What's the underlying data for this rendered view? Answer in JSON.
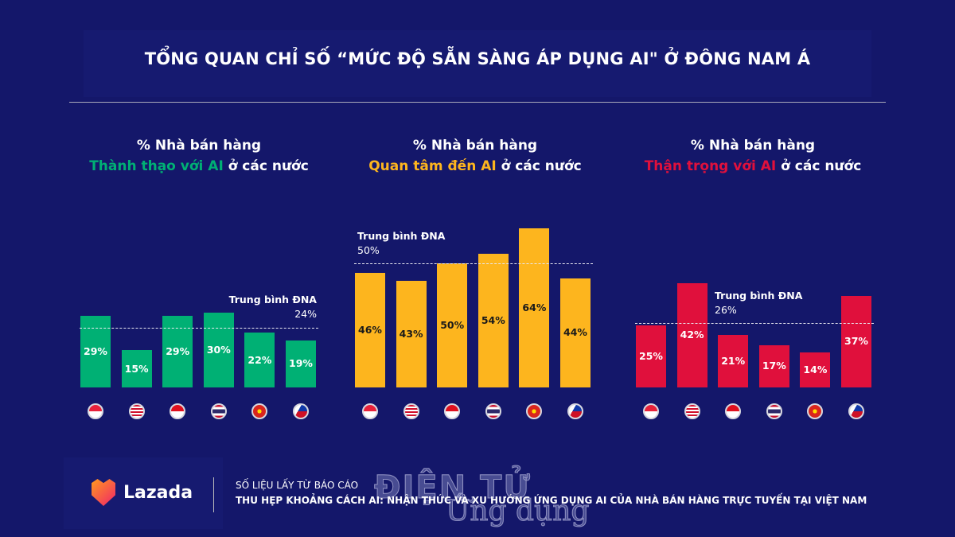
{
  "title": "TỔNG QUAN CHỈ SỐ “MỨC ĐỘ SẴN SÀNG ÁP DỤNG AI\" Ở ĐÔNG NAM Á",
  "colors": {
    "background": "#14176a",
    "green": "#00b074",
    "orange": "#fdb51e",
    "red": "#e0103c"
  },
  "chart_data": [
    {
      "type": "bar",
      "title_line1": "% Nhà bán hàng",
      "title_highlight": "Thành thạo với AI",
      "title_rest": " ở các nước",
      "color": "#00b074",
      "label_color": "#ffffff",
      "categories": [
        "Singapore",
        "Malaysia",
        "Indonesia",
        "Thailand",
        "Vietnam",
        "Philippines"
      ],
      "values": [
        29,
        15,
        29,
        30,
        22,
        19
      ],
      "data_labels": [
        "29%",
        "15%",
        "29%",
        "30%",
        "22%",
        "19%"
      ],
      "average": {
        "label": "Trung bình ĐNA",
        "value": 24,
        "value_label": "24%"
      }
    },
    {
      "type": "bar",
      "title_line1": "% Nhà bán hàng",
      "title_highlight": "Quan tâm đến AI",
      "title_rest": " ở các nước",
      "color": "#fdb51e",
      "label_color": "#1a1a1a",
      "categories": [
        "Singapore",
        "Malaysia",
        "Indonesia",
        "Thailand",
        "Vietnam",
        "Philippines"
      ],
      "values": [
        46,
        43,
        50,
        54,
        64,
        44
      ],
      "data_labels": [
        "46%",
        "43%",
        "50%",
        "54%",
        "64%",
        "44%"
      ],
      "average": {
        "label": "Trung bình ĐNA",
        "value": 50,
        "value_label": "50%"
      }
    },
    {
      "type": "bar",
      "title_line1": "% Nhà bán hàng",
      "title_highlight": "Thận trọng với AI",
      "title_rest": " ở các nước",
      "color": "#e0103c",
      "label_color": "#ffffff",
      "categories": [
        "Singapore",
        "Malaysia",
        "Indonesia",
        "Thailand",
        "Vietnam",
        "Philippines"
      ],
      "values": [
        25,
        42,
        21,
        17,
        14,
        37
      ],
      "data_labels": [
        "25%",
        "42%",
        "21%",
        "17%",
        "14%",
        "37%"
      ],
      "average": {
        "label": "Trung bình ĐNA",
        "value": 26,
        "value_label": "26%"
      }
    }
  ],
  "footer": {
    "brand": "Lazada",
    "source_line1": "SỐ LIỆU LẤY TỪ BÁO CÁO",
    "source_line2": "THU HẸP KHOẢNG CÁCH AI: NHẬN THỨC VÀ XU HƯỚNG ỨNG DỤNG AI CỦA NHÀ BÁN HÀNG TRỰC TUYẾN TẠI VIỆT NAM",
    "watermark_line1": "ĐIỆN TỬ",
    "watermark_line2": "Ứng dụng"
  }
}
